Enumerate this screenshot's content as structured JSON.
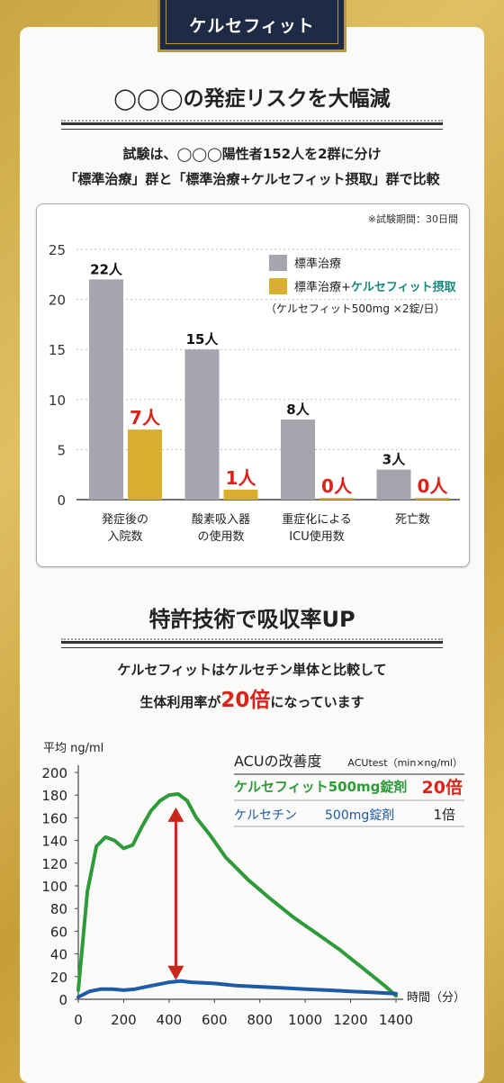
{
  "brand": "ケルセフィット",
  "section1": {
    "title": "◯◯◯の発症リスクを大幅減",
    "line1": "試験は、◯◯◯陽性者152人を2群に分け",
    "line2": "「標準治療」群と「標準治療+ケルセフィット摂取」群で比較"
  },
  "section2": {
    "title": "特許技術で吸収率UP",
    "line1": "ケルセフィットはケルセチン単体と比較して",
    "line2_pre": "生体利用率が",
    "line2_highlight": "20倍",
    "line2_post": "になっています"
  },
  "chart_data": [
    {
      "type": "bar",
      "note": "※試験期間：30日間",
      "categories": [
        "発症後の\n入院数",
        "酸素吸入器\nの使用数",
        "重症化による\nICU使用数",
        "死亡数"
      ],
      "ylim": [
        0,
        25
      ],
      "yticks": [
        0,
        5,
        10,
        15,
        20,
        25
      ],
      "grid": true,
      "legend_position": "top-right",
      "series": [
        {
          "name": "標準治療",
          "color": "#a5a5ad",
          "values": [
            22,
            15,
            8,
            3
          ],
          "labels": [
            "22人",
            "15人",
            "8人",
            "3人"
          ]
        },
        {
          "name": "標準治療+ケルセフィット摂取",
          "name_part1": "標準治療+",
          "name_part2": "ケルセフィット摂取",
          "color": "#d9b02e",
          "values": [
            7,
            1,
            0,
            0
          ],
          "labels": [
            "7人",
            "1人",
            "0人",
            "0人"
          ]
        }
      ],
      "legend_note": "（ケルセフィット500mg ×2錠/日）"
    },
    {
      "type": "line",
      "ylabel": "平均 ng/ml",
      "xlabel": "時間（分）",
      "xlim": [
        0,
        1400
      ],
      "ylim": [
        0,
        200
      ],
      "xticks": [
        0,
        200,
        400,
        600,
        800,
        1000,
        1200,
        1400
      ],
      "yticks": [
        0,
        20,
        40,
        60,
        80,
        100,
        120,
        140,
        160,
        180,
        200
      ],
      "series": [
        {
          "name": "ケルセフィット500mg錠剤",
          "color": "#2e9a3a",
          "x": [
            0,
            40,
            80,
            120,
            160,
            200,
            240,
            280,
            320,
            360,
            400,
            440,
            480,
            520,
            580,
            650,
            750,
            850,
            950,
            1050,
            1150,
            1250,
            1350,
            1400
          ],
          "y": [
            8,
            95,
            135,
            143,
            140,
            133,
            136,
            152,
            166,
            175,
            180,
            181,
            175,
            160,
            145,
            125,
            105,
            88,
            72,
            58,
            44,
            28,
            12,
            3
          ]
        },
        {
          "name": "ケルセチン 500mg錠剤",
          "color": "#1f5aa6",
          "x": [
            0,
            50,
            100,
            150,
            200,
            250,
            300,
            350,
            400,
            450,
            500,
            600,
            700,
            800,
            900,
            1000,
            1100,
            1200,
            1300,
            1400
          ],
          "y": [
            2,
            7,
            9,
            9,
            8,
            9,
            11,
            13,
            15,
            16,
            15,
            14,
            12,
            11,
            10,
            9,
            8,
            7,
            6,
            5
          ]
        }
      ],
      "annotation": "red double-headed arrow at x≈430 between curves",
      "table": {
        "header_left": "ACUの改善度",
        "header_right": "ACUtest（min×ng/ml）",
        "rows": [
          {
            "name": "ケルセフィット500mg錠剤",
            "value": "20倍",
            "color": "#2e9a3a",
            "value_color": "#d9241c"
          },
          {
            "name_a": "ケルセチン",
            "name_b": "500mg錠剤",
            "value": "1倍",
            "color": "#1f5aa6",
            "value_color": "#222"
          }
        ]
      }
    }
  ]
}
